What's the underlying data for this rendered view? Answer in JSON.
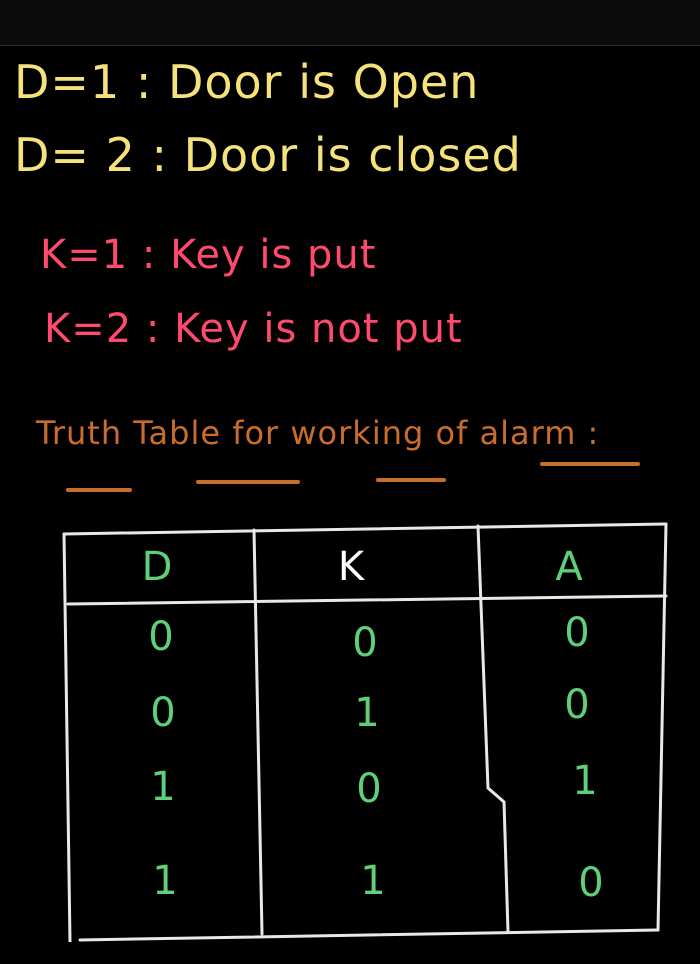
{
  "definitions": {
    "door_open": "D=1 : Door is Open",
    "door_closed": "D= 2 : Door is closed",
    "key_put": "K=1 : Key is put",
    "key_not_put": "K=2 : Key is not put"
  },
  "heading": "Truth Table for working of alarm :",
  "colors": {
    "definition_door": "#f5e27a",
    "definition_key": "#ff4a6e",
    "heading": "#c96d2c",
    "table_values": "#5fd07a",
    "grid_lines": "#e8e8e8",
    "background": "#000000"
  },
  "table": {
    "headers": [
      "D",
      "K",
      "A"
    ],
    "rows": [
      [
        "0",
        "0",
        "0"
      ],
      [
        "0",
        "1",
        "0"
      ],
      [
        "1",
        "0",
        "1"
      ],
      [
        "1",
        "1",
        "0"
      ]
    ]
  }
}
